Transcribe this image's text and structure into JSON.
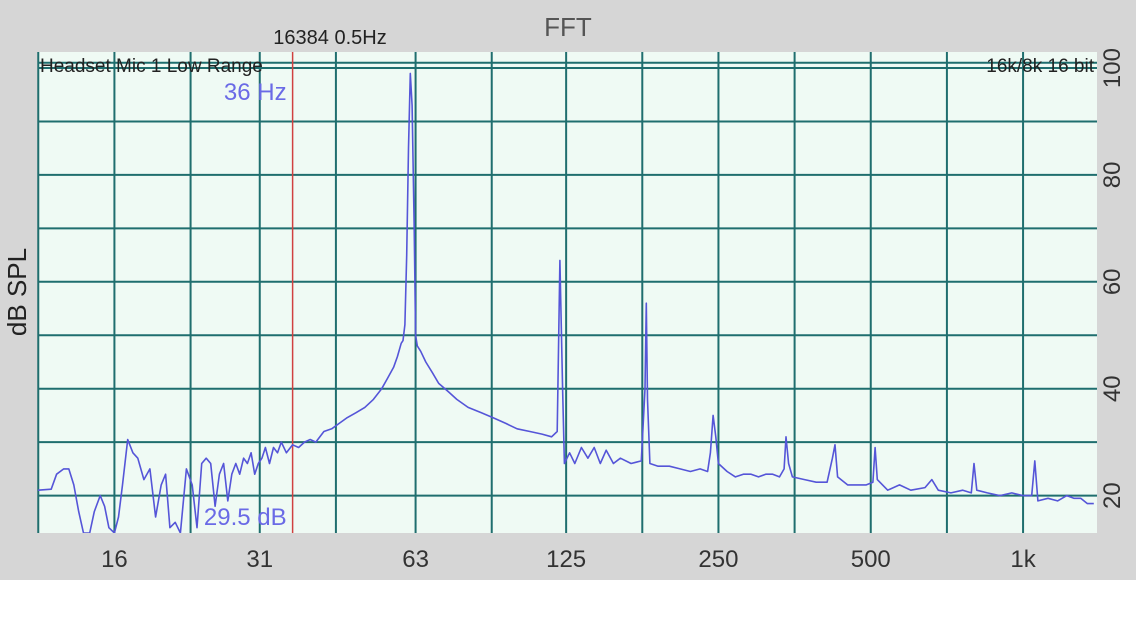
{
  "chart_data": {
    "type": "line",
    "title": "FFT",
    "fft_info": "16384  0.5Hz",
    "input_label": "Headset Mic 1 Low Range",
    "format_label": "16k/8k 16 bit",
    "ylabel": "dB SPL",
    "xlabel": "",
    "x_scale": "log2",
    "xlim": [
      11.3,
      1400
    ],
    "ylim": [
      13,
      103
    ],
    "x_ticks": [
      {
        "value": 16,
        "label": "16"
      },
      {
        "value": 31,
        "label": "31"
      },
      {
        "value": 63,
        "label": "63"
      },
      {
        "value": 125,
        "label": "125"
      },
      {
        "value": 250,
        "label": "250"
      },
      {
        "value": 500,
        "label": "500"
      },
      {
        "value": 1000,
        "label": "1k"
      }
    ],
    "y_ticks": [
      {
        "value": 20,
        "label": "20"
      },
      {
        "value": 40,
        "label": "40"
      },
      {
        "value": 60,
        "label": "60"
      },
      {
        "value": 80,
        "label": "80"
      },
      {
        "value": 100,
        "label": "100"
      }
    ],
    "grid": true,
    "colors": {
      "plot_bg": "#effaf4",
      "grid": "#1f6e6e",
      "trace": "#5555d8",
      "cursor": "#d04040",
      "readout": "#6a6ae6",
      "panel": "#d6d6d6"
    },
    "cursor": {
      "frequency": 36,
      "level": 29.5,
      "freq_label": "36 Hz",
      "level_label": "29.5 dB"
    },
    "series": [
      {
        "points": [
          [
            11.3,
            21.0
          ],
          [
            12.0,
            21.2
          ],
          [
            12.3,
            24.0
          ],
          [
            12.7,
            25.0
          ],
          [
            13.0,
            25.0
          ],
          [
            13.3,
            22.0
          ],
          [
            13.6,
            17.0
          ],
          [
            13.9,
            13.0
          ],
          [
            14.3,
            13.0
          ],
          [
            14.6,
            17.0
          ],
          [
            15.0,
            20.0
          ],
          [
            15.3,
            18.0
          ],
          [
            15.6,
            14.0
          ],
          [
            16.0,
            13.0
          ],
          [
            16.3,
            16.0
          ],
          [
            16.6,
            22.0
          ],
          [
            17.0,
            30.5
          ],
          [
            17.4,
            28.0
          ],
          [
            17.8,
            27.0
          ],
          [
            18.3,
            23.0
          ],
          [
            18.8,
            25.0
          ],
          [
            19.3,
            16.0
          ],
          [
            19.8,
            22.0
          ],
          [
            20.2,
            24.0
          ],
          [
            20.6,
            14.0
          ],
          [
            21.1,
            15.0
          ],
          [
            21.6,
            13.0
          ],
          [
            22.2,
            25.0
          ],
          [
            22.8,
            22.0
          ],
          [
            23.3,
            14.0
          ],
          [
            23.8,
            26.0
          ],
          [
            24.3,
            27.0
          ],
          [
            24.8,
            26.0
          ],
          [
            25.3,
            18.0
          ],
          [
            25.8,
            24.0
          ],
          [
            26.3,
            26.0
          ],
          [
            26.8,
            19.0
          ],
          [
            27.3,
            24.0
          ],
          [
            27.8,
            26.0
          ],
          [
            28.3,
            24.0
          ],
          [
            28.8,
            27.0
          ],
          [
            29.3,
            26.0
          ],
          [
            29.8,
            28.0
          ],
          [
            30.3,
            24.0
          ],
          [
            30.8,
            26.0
          ],
          [
            31.3,
            27.0
          ],
          [
            31.8,
            29.0
          ],
          [
            32.4,
            26.0
          ],
          [
            33.0,
            29.0
          ],
          [
            33.6,
            28.0
          ],
          [
            34.2,
            30.0
          ],
          [
            35.0,
            28.0
          ],
          [
            36.0,
            29.5
          ],
          [
            37.0,
            29.0
          ],
          [
            38.0,
            30.0
          ],
          [
            39.0,
            30.5
          ],
          [
            40.0,
            30.0
          ],
          [
            41.5,
            32.0
          ],
          [
            43.0,
            32.5
          ],
          [
            44.5,
            33.5
          ],
          [
            46.0,
            34.5
          ],
          [
            48.0,
            35.5
          ],
          [
            50.0,
            36.5
          ],
          [
            52.0,
            38.0
          ],
          [
            54.0,
            40.0
          ],
          [
            55.5,
            42.0
          ],
          [
            57.0,
            44.0
          ],
          [
            58.0,
            46.0
          ],
          [
            59.0,
            48.5
          ],
          [
            59.5,
            49.0
          ],
          [
            60.0,
            52.0
          ],
          [
            60.5,
            65.0
          ],
          [
            61.0,
            85.0
          ],
          [
            61.5,
            99.0
          ],
          [
            62.0,
            93.0
          ],
          [
            62.6,
            70.0
          ],
          [
            63.0,
            50.0
          ],
          [
            63.5,
            48.0
          ],
          [
            64.5,
            47.0
          ],
          [
            66.0,
            45.0
          ],
          [
            68.0,
            43.0
          ],
          [
            70.0,
            41.0
          ],
          [
            73.0,
            39.5
          ],
          [
            76.0,
            38.0
          ],
          [
            80.0,
            36.5
          ],
          [
            85.0,
            35.5
          ],
          [
            90.0,
            34.5
          ],
          [
            95.0,
            33.5
          ],
          [
            100.0,
            32.5
          ],
          [
            106.0,
            32.0
          ],
          [
            112.0,
            31.5
          ],
          [
            117.0,
            31.0
          ],
          [
            120.0,
            32.0
          ],
          [
            121.5,
            64.0
          ],
          [
            123.0,
            40.0
          ],
          [
            124.0,
            26.0
          ],
          [
            127.0,
            28.0
          ],
          [
            130.0,
            26.0
          ],
          [
            134.0,
            29.0
          ],
          [
            138.0,
            27.0
          ],
          [
            142.0,
            29.0
          ],
          [
            146.0,
            26.0
          ],
          [
            150.0,
            28.5
          ],
          [
            155.0,
            26.0
          ],
          [
            160.0,
            27.0
          ],
          [
            168.0,
            26.0
          ],
          [
            176.0,
            26.5
          ],
          [
            179.0,
            40.0
          ],
          [
            180.0,
            56.0
          ],
          [
            181.0,
            38.0
          ],
          [
            183.0,
            26.0
          ],
          [
            190.0,
            25.5
          ],
          [
            200.0,
            25.5
          ],
          [
            210.0,
            25.0
          ],
          [
            220.0,
            24.5
          ],
          [
            230.0,
            25.0
          ],
          [
            238.0,
            24.5
          ],
          [
            241.0,
            28.0
          ],
          [
            244.0,
            35.0
          ],
          [
            247.0,
            31.0
          ],
          [
            250.0,
            26.0
          ],
          [
            260.0,
            24.5
          ],
          [
            270.0,
            23.5
          ],
          [
            280.0,
            24.0
          ],
          [
            290.0,
            24.0
          ],
          [
            300.0,
            23.5
          ],
          [
            310.0,
            24.0
          ],
          [
            320.0,
            24.0
          ],
          [
            330.0,
            23.5
          ],
          [
            337.0,
            25.0
          ],
          [
            340.0,
            31.0
          ],
          [
            344.0,
            26.0
          ],
          [
            350.0,
            23.5
          ],
          [
            370.0,
            23.0
          ],
          [
            390.0,
            22.5
          ],
          [
            410.0,
            22.5
          ],
          [
            420.0,
            27.0
          ],
          [
            425.0,
            29.5
          ],
          [
            430.0,
            23.5
          ],
          [
            450.0,
            22.0
          ],
          [
            470.0,
            22.0
          ],
          [
            490.0,
            22.0
          ],
          [
            505.0,
            22.5
          ],
          [
            510.0,
            29.0
          ],
          [
            515.0,
            23.0
          ],
          [
            540.0,
            21.0
          ],
          [
            570.0,
            22.0
          ],
          [
            600.0,
            21.0
          ],
          [
            640.0,
            21.5
          ],
          [
            660.0,
            23.0
          ],
          [
            680.0,
            21.0
          ],
          [
            720.0,
            20.5
          ],
          [
            760.0,
            21.0
          ],
          [
            790.0,
            20.5
          ],
          [
            800.0,
            26.0
          ],
          [
            810.0,
            21.0
          ],
          [
            850.0,
            20.5
          ],
          [
            900.0,
            20.0
          ],
          [
            950.0,
            20.5
          ],
          [
            1000.0,
            20.0
          ],
          [
            1040.0,
            20.0
          ],
          [
            1055.0,
            26.5
          ],
          [
            1070.0,
            19.0
          ],
          [
            1120.0,
            19.5
          ],
          [
            1170.0,
            19.0
          ],
          [
            1220.0,
            20.0
          ],
          [
            1260.0,
            19.5
          ],
          [
            1300.0,
            19.5
          ],
          [
            1340.0,
            18.5
          ],
          [
            1380.0,
            18.5
          ]
        ]
      }
    ]
  }
}
